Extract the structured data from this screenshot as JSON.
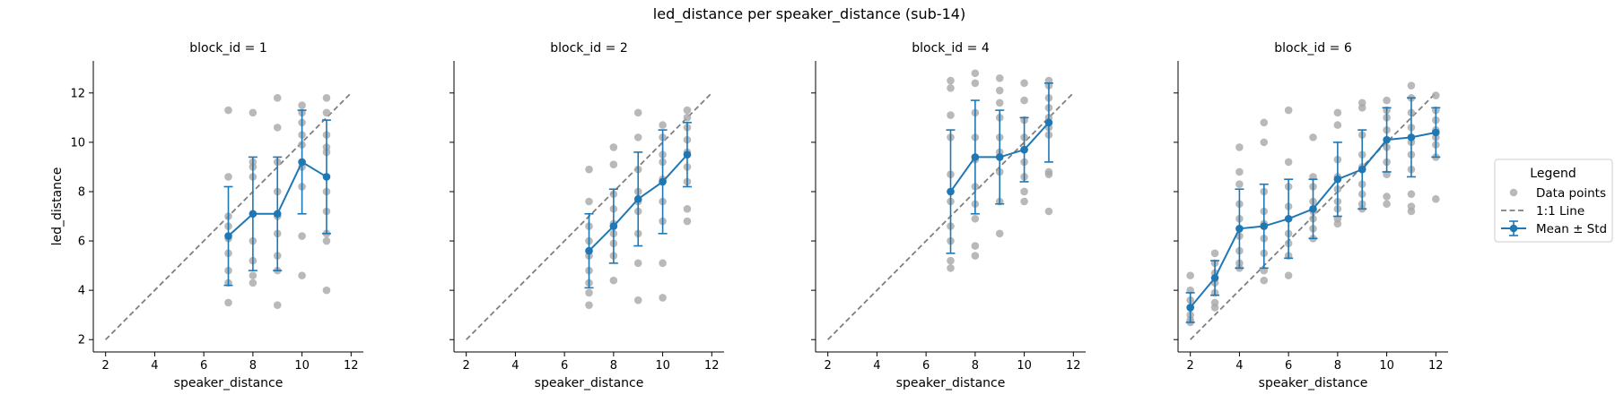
{
  "chart_data": {
    "type": "scatter",
    "title": "led_distance per speaker_distance (sub-14)",
    "xlabel": "speaker_distance",
    "ylabel": "led_distance",
    "xlim": [
      1.5,
      12.5
    ],
    "ylim": [
      1.5,
      13.3
    ],
    "xticks": [
      2,
      4,
      6,
      8,
      10,
      12
    ],
    "yticks": [
      2,
      4,
      6,
      8,
      10,
      12
    ],
    "grid": false,
    "legend_placement": "right",
    "colors": {
      "points": "#a8a8a8",
      "mean": "#1f77b4",
      "identity": "#7f7f7f"
    },
    "legend": {
      "title": "Legend",
      "entries": [
        "Data points",
        "1:1 Line",
        "Mean ± Std"
      ]
    },
    "panels": [
      {
        "title": "block_id = 1",
        "mean_series": {
          "x": [
            7,
            8,
            9,
            10,
            11
          ],
          "mean": [
            6.2,
            7.1,
            7.1,
            9.2,
            8.6
          ],
          "std": [
            2.0,
            2.3,
            2.3,
            2.1,
            2.3
          ]
        },
        "points": [
          {
            "x": 7,
            "y": 11.3
          },
          {
            "x": 7,
            "y": 8.6
          },
          {
            "x": 7,
            "y": 7.0
          },
          {
            "x": 7,
            "y": 6.6
          },
          {
            "x": 7,
            "y": 6.1
          },
          {
            "x": 7,
            "y": 5.5
          },
          {
            "x": 7,
            "y": 4.8
          },
          {
            "x": 7,
            "y": 4.3
          },
          {
            "x": 7,
            "y": 3.5
          },
          {
            "x": 8,
            "y": 11.2
          },
          {
            "x": 8,
            "y": 9.2
          },
          {
            "x": 8,
            "y": 9.0
          },
          {
            "x": 8,
            "y": 8.6
          },
          {
            "x": 8,
            "y": 7.1
          },
          {
            "x": 8,
            "y": 6.0
          },
          {
            "x": 8,
            "y": 5.2
          },
          {
            "x": 8,
            "y": 4.6
          },
          {
            "x": 8,
            "y": 4.3
          },
          {
            "x": 9,
            "y": 11.8
          },
          {
            "x": 9,
            "y": 10.6
          },
          {
            "x": 9,
            "y": 9.2
          },
          {
            "x": 9,
            "y": 8.0
          },
          {
            "x": 9,
            "y": 7.0
          },
          {
            "x": 9,
            "y": 6.3
          },
          {
            "x": 9,
            "y": 5.4
          },
          {
            "x": 9,
            "y": 4.8
          },
          {
            "x": 9,
            "y": 3.4
          },
          {
            "x": 10,
            "y": 11.5
          },
          {
            "x": 10,
            "y": 11.2
          },
          {
            "x": 10,
            "y": 10.8
          },
          {
            "x": 10,
            "y": 10.3
          },
          {
            "x": 10,
            "y": 9.9
          },
          {
            "x": 10,
            "y": 9.0
          },
          {
            "x": 10,
            "y": 8.2
          },
          {
            "x": 10,
            "y": 6.2
          },
          {
            "x": 10,
            "y": 4.6
          },
          {
            "x": 11,
            "y": 11.8
          },
          {
            "x": 11,
            "y": 11.2
          },
          {
            "x": 11,
            "y": 10.3
          },
          {
            "x": 11,
            "y": 9.8
          },
          {
            "x": 11,
            "y": 9.6
          },
          {
            "x": 11,
            "y": 8.0
          },
          {
            "x": 11,
            "y": 7.2
          },
          {
            "x": 11,
            "y": 6.3
          },
          {
            "x": 11,
            "y": 6.0
          },
          {
            "x": 11,
            "y": 4.0
          }
        ]
      },
      {
        "title": "block_id = 2",
        "mean_series": {
          "x": [
            7,
            8,
            9,
            10,
            11
          ],
          "mean": [
            5.6,
            6.6,
            7.7,
            8.4,
            9.5
          ],
          "std": [
            1.5,
            1.5,
            1.9,
            2.1,
            1.3
          ]
        },
        "points": [
          {
            "x": 7,
            "y": 8.9
          },
          {
            "x": 7,
            "y": 7.6
          },
          {
            "x": 7,
            "y": 6.6
          },
          {
            "x": 7,
            "y": 6.0
          },
          {
            "x": 7,
            "y": 5.4
          },
          {
            "x": 7,
            "y": 4.8
          },
          {
            "x": 7,
            "y": 4.3
          },
          {
            "x": 7,
            "y": 3.9
          },
          {
            "x": 7,
            "y": 3.4
          },
          {
            "x": 8,
            "y": 9.8
          },
          {
            "x": 8,
            "y": 9.1
          },
          {
            "x": 8,
            "y": 7.9
          },
          {
            "x": 8,
            "y": 7.3
          },
          {
            "x": 8,
            "y": 6.7
          },
          {
            "x": 8,
            "y": 6.3
          },
          {
            "x": 8,
            "y": 5.9
          },
          {
            "x": 8,
            "y": 5.4
          },
          {
            "x": 8,
            "y": 4.4
          },
          {
            "x": 9,
            "y": 11.2
          },
          {
            "x": 9,
            "y": 10.2
          },
          {
            "x": 9,
            "y": 8.9
          },
          {
            "x": 9,
            "y": 8.0
          },
          {
            "x": 9,
            "y": 7.6
          },
          {
            "x": 9,
            "y": 7.2
          },
          {
            "x": 9,
            "y": 6.3
          },
          {
            "x": 9,
            "y": 5.1
          },
          {
            "x": 9,
            "y": 3.6
          },
          {
            "x": 10,
            "y": 10.7
          },
          {
            "x": 10,
            "y": 10.2
          },
          {
            "x": 10,
            "y": 9.5
          },
          {
            "x": 10,
            "y": 9.2
          },
          {
            "x": 10,
            "y": 8.5
          },
          {
            "x": 10,
            "y": 7.6
          },
          {
            "x": 10,
            "y": 6.8
          },
          {
            "x": 10,
            "y": 5.1
          },
          {
            "x": 10,
            "y": 3.7
          },
          {
            "x": 11,
            "y": 11.3
          },
          {
            "x": 11,
            "y": 11.0
          },
          {
            "x": 11,
            "y": 10.6
          },
          {
            "x": 11,
            "y": 10.1
          },
          {
            "x": 11,
            "y": 9.6
          },
          {
            "x": 11,
            "y": 9.0
          },
          {
            "x": 11,
            "y": 8.4
          },
          {
            "x": 11,
            "y": 7.3
          },
          {
            "x": 11,
            "y": 6.8
          }
        ]
      },
      {
        "title": "block_id = 4",
        "mean_series": {
          "x": [
            7,
            8,
            9,
            10,
            11
          ],
          "mean": [
            8.0,
            9.4,
            9.4,
            9.7,
            10.8
          ],
          "std": [
            2.5,
            2.3,
            1.9,
            1.3,
            1.6
          ]
        },
        "points": [
          {
            "x": 7,
            "y": 12.5
          },
          {
            "x": 7,
            "y": 12.2
          },
          {
            "x": 7,
            "y": 11.1
          },
          {
            "x": 7,
            "y": 10.2
          },
          {
            "x": 7,
            "y": 8.7
          },
          {
            "x": 7,
            "y": 7.6
          },
          {
            "x": 7,
            "y": 6.6
          },
          {
            "x": 7,
            "y": 6.0
          },
          {
            "x": 7,
            "y": 5.2
          },
          {
            "x": 7,
            "y": 4.9
          },
          {
            "x": 8,
            "y": 12.8
          },
          {
            "x": 8,
            "y": 12.4
          },
          {
            "x": 8,
            "y": 11.2
          },
          {
            "x": 8,
            "y": 10.2
          },
          {
            "x": 8,
            "y": 9.3
          },
          {
            "x": 8,
            "y": 8.2
          },
          {
            "x": 8,
            "y": 7.5
          },
          {
            "x": 8,
            "y": 6.9
          },
          {
            "x": 8,
            "y": 5.8
          },
          {
            "x": 8,
            "y": 5.4
          },
          {
            "x": 9,
            "y": 12.6
          },
          {
            "x": 9,
            "y": 12.1
          },
          {
            "x": 9,
            "y": 11.6
          },
          {
            "x": 9,
            "y": 11.0
          },
          {
            "x": 9,
            "y": 10.2
          },
          {
            "x": 9,
            "y": 9.6
          },
          {
            "x": 9,
            "y": 8.8
          },
          {
            "x": 9,
            "y": 7.6
          },
          {
            "x": 9,
            "y": 6.3
          },
          {
            "x": 10,
            "y": 12.4
          },
          {
            "x": 10,
            "y": 11.7
          },
          {
            "x": 10,
            "y": 10.9
          },
          {
            "x": 10,
            "y": 10.2
          },
          {
            "x": 10,
            "y": 9.7
          },
          {
            "x": 10,
            "y": 9.2
          },
          {
            "x": 10,
            "y": 8.6
          },
          {
            "x": 10,
            "y": 8.0
          },
          {
            "x": 10,
            "y": 7.6
          },
          {
            "x": 11,
            "y": 12.5
          },
          {
            "x": 11,
            "y": 12.3
          },
          {
            "x": 11,
            "y": 11.8
          },
          {
            "x": 11,
            "y": 11.4
          },
          {
            "x": 11,
            "y": 11.0
          },
          {
            "x": 11,
            "y": 10.6
          },
          {
            "x": 11,
            "y": 10.3
          },
          {
            "x": 11,
            "y": 8.8
          },
          {
            "x": 11,
            "y": 8.7
          },
          {
            "x": 11,
            "y": 7.2
          }
        ]
      },
      {
        "title": "block_id = 6",
        "mean_series": {
          "x": [
            2,
            3,
            4,
            5,
            6,
            7,
            8,
            9,
            10,
            11,
            12
          ],
          "mean": [
            3.3,
            4.5,
            6.5,
            6.6,
            6.9,
            7.3,
            8.5,
            8.9,
            10.1,
            10.2,
            10.4
          ],
          "std": [
            0.6,
            0.7,
            1.6,
            1.7,
            1.6,
            1.2,
            1.5,
            1.6,
            1.3,
            1.6,
            1.0
          ]
        },
        "points": [
          {
            "x": 2,
            "y": 4.6
          },
          {
            "x": 2,
            "y": 4.0
          },
          {
            "x": 2,
            "y": 3.6
          },
          {
            "x": 2,
            "y": 3.3
          },
          {
            "x": 2,
            "y": 3.0
          },
          {
            "x": 2,
            "y": 2.8
          },
          {
            "x": 2,
            "y": 2.7
          },
          {
            "x": 3,
            "y": 5.5
          },
          {
            "x": 3,
            "y": 5.1
          },
          {
            "x": 3,
            "y": 4.7
          },
          {
            "x": 3,
            "y": 4.3
          },
          {
            "x": 3,
            "y": 3.9
          },
          {
            "x": 3,
            "y": 3.5
          },
          {
            "x": 3,
            "y": 3.3
          },
          {
            "x": 4,
            "y": 9.8
          },
          {
            "x": 4,
            "y": 8.8
          },
          {
            "x": 4,
            "y": 8.3
          },
          {
            "x": 4,
            "y": 7.5
          },
          {
            "x": 4,
            "y": 6.9
          },
          {
            "x": 4,
            "y": 6.2
          },
          {
            "x": 4,
            "y": 5.6
          },
          {
            "x": 4,
            "y": 5.1
          },
          {
            "x": 4,
            "y": 4.9
          },
          {
            "x": 5,
            "y": 10.8
          },
          {
            "x": 5,
            "y": 10.0
          },
          {
            "x": 5,
            "y": 8.0
          },
          {
            "x": 5,
            "y": 7.2
          },
          {
            "x": 5,
            "y": 6.7
          },
          {
            "x": 5,
            "y": 6.1
          },
          {
            "x": 5,
            "y": 5.5
          },
          {
            "x": 5,
            "y": 4.8
          },
          {
            "x": 5,
            "y": 4.4
          },
          {
            "x": 6,
            "y": 11.3
          },
          {
            "x": 6,
            "y": 9.2
          },
          {
            "x": 6,
            "y": 8.2
          },
          {
            "x": 6,
            "y": 7.4
          },
          {
            "x": 6,
            "y": 6.9
          },
          {
            "x": 6,
            "y": 6.3
          },
          {
            "x": 6,
            "y": 5.9
          },
          {
            "x": 6,
            "y": 5.4
          },
          {
            "x": 6,
            "y": 4.6
          },
          {
            "x": 7,
            "y": 10.2
          },
          {
            "x": 7,
            "y": 8.6
          },
          {
            "x": 7,
            "y": 8.2
          },
          {
            "x": 7,
            "y": 7.6
          },
          {
            "x": 7,
            "y": 7.2
          },
          {
            "x": 7,
            "y": 6.9
          },
          {
            "x": 7,
            "y": 6.5
          },
          {
            "x": 7,
            "y": 6.1
          },
          {
            "x": 8,
            "y": 11.2
          },
          {
            "x": 8,
            "y": 10.7
          },
          {
            "x": 8,
            "y": 9.3
          },
          {
            "x": 8,
            "y": 8.6
          },
          {
            "x": 8,
            "y": 8.1
          },
          {
            "x": 8,
            "y": 7.6
          },
          {
            "x": 8,
            "y": 7.3
          },
          {
            "x": 8,
            "y": 6.9
          },
          {
            "x": 8,
            "y": 6.7
          },
          {
            "x": 9,
            "y": 11.6
          },
          {
            "x": 9,
            "y": 11.4
          },
          {
            "x": 9,
            "y": 10.3
          },
          {
            "x": 9,
            "y": 9.5
          },
          {
            "x": 9,
            "y": 9.0
          },
          {
            "x": 9,
            "y": 8.3
          },
          {
            "x": 9,
            "y": 7.9
          },
          {
            "x": 9,
            "y": 7.5
          },
          {
            "x": 9,
            "y": 7.3
          },
          {
            "x": 10,
            "y": 11.7
          },
          {
            "x": 10,
            "y": 11.3
          },
          {
            "x": 10,
            "y": 11.0
          },
          {
            "x": 10,
            "y": 10.5
          },
          {
            "x": 10,
            "y": 9.8
          },
          {
            "x": 10,
            "y": 9.2
          },
          {
            "x": 10,
            "y": 8.7
          },
          {
            "x": 10,
            "y": 7.8
          },
          {
            "x": 10,
            "y": 7.5
          },
          {
            "x": 11,
            "y": 12.3
          },
          {
            "x": 11,
            "y": 11.8
          },
          {
            "x": 11,
            "y": 11.2
          },
          {
            "x": 11,
            "y": 10.6
          },
          {
            "x": 11,
            "y": 10.0
          },
          {
            "x": 11,
            "y": 9.5
          },
          {
            "x": 11,
            "y": 8.9
          },
          {
            "x": 11,
            "y": 7.9
          },
          {
            "x": 11,
            "y": 7.4
          },
          {
            "x": 11,
            "y": 7.2
          },
          {
            "x": 12,
            "y": 11.9
          },
          {
            "x": 12,
            "y": 11.3
          },
          {
            "x": 12,
            "y": 10.9
          },
          {
            "x": 12,
            "y": 10.5
          },
          {
            "x": 12,
            "y": 10.2
          },
          {
            "x": 12,
            "y": 9.9
          },
          {
            "x": 12,
            "y": 9.4
          },
          {
            "x": 12,
            "y": 7.7
          }
        ]
      }
    ]
  }
}
